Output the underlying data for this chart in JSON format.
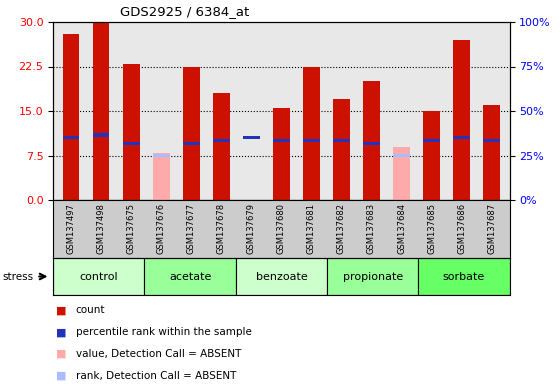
{
  "title": "GDS2925 / 6384_at",
  "samples": [
    "GSM137497",
    "GSM137498",
    "GSM137675",
    "GSM137676",
    "GSM137677",
    "GSM137678",
    "GSM137679",
    "GSM137680",
    "GSM137681",
    "GSM137682",
    "GSM137683",
    "GSM137684",
    "GSM137685",
    "GSM137686",
    "GSM137687"
  ],
  "red_values": [
    28.0,
    30.0,
    23.0,
    0.0,
    22.5,
    18.0,
    0.0,
    15.5,
    22.5,
    17.0,
    20.0,
    0.0,
    15.0,
    27.0,
    16.0
  ],
  "pink_values": [
    0.0,
    0.0,
    0.0,
    8.0,
    0.0,
    0.0,
    0.0,
    0.0,
    0.0,
    0.0,
    0.0,
    9.0,
    0.0,
    0.0,
    0.0
  ],
  "blue_values": [
    10.5,
    11.0,
    9.5,
    0.0,
    9.5,
    10.0,
    10.5,
    10.0,
    10.0,
    10.0,
    9.5,
    0.0,
    10.0,
    10.5,
    10.0
  ],
  "lavender_values": [
    0.0,
    0.0,
    0.0,
    7.5,
    0.0,
    0.0,
    0.0,
    0.0,
    0.0,
    0.0,
    0.0,
    7.5,
    0.0,
    0.0,
    0.0
  ],
  "groups": [
    {
      "label": "control",
      "start": 0,
      "end": 3,
      "color": "#ccffcc"
    },
    {
      "label": "acetate",
      "start": 3,
      "end": 6,
      "color": "#99ff99"
    },
    {
      "label": "benzoate",
      "start": 6,
      "end": 9,
      "color": "#ccffcc"
    },
    {
      "label": "propionate",
      "start": 9,
      "end": 12,
      "color": "#99ff99"
    },
    {
      "label": "sorbate",
      "start": 12,
      "end": 15,
      "color": "#66ff66"
    }
  ],
  "ylim": [
    0,
    30
  ],
  "yticks_left": [
    0,
    7.5,
    15,
    22.5,
    30
  ],
  "yticks_right": [
    0,
    25,
    50,
    75,
    100
  ],
  "bar_width": 0.55,
  "red_color": "#cc1100",
  "pink_color": "#ffaaaa",
  "blue_color": "#2233bb",
  "lavender_color": "#aabbff",
  "plot_bg": "#e8e8e8",
  "xtick_bg": "#cccccc",
  "legend_labels": [
    "count",
    "percentile rank within the sample",
    "value, Detection Call = ABSENT",
    "rank, Detection Call = ABSENT"
  ],
  "legend_colors": [
    "#cc1100",
    "#2233bb",
    "#ffaaaa",
    "#aabbff"
  ]
}
